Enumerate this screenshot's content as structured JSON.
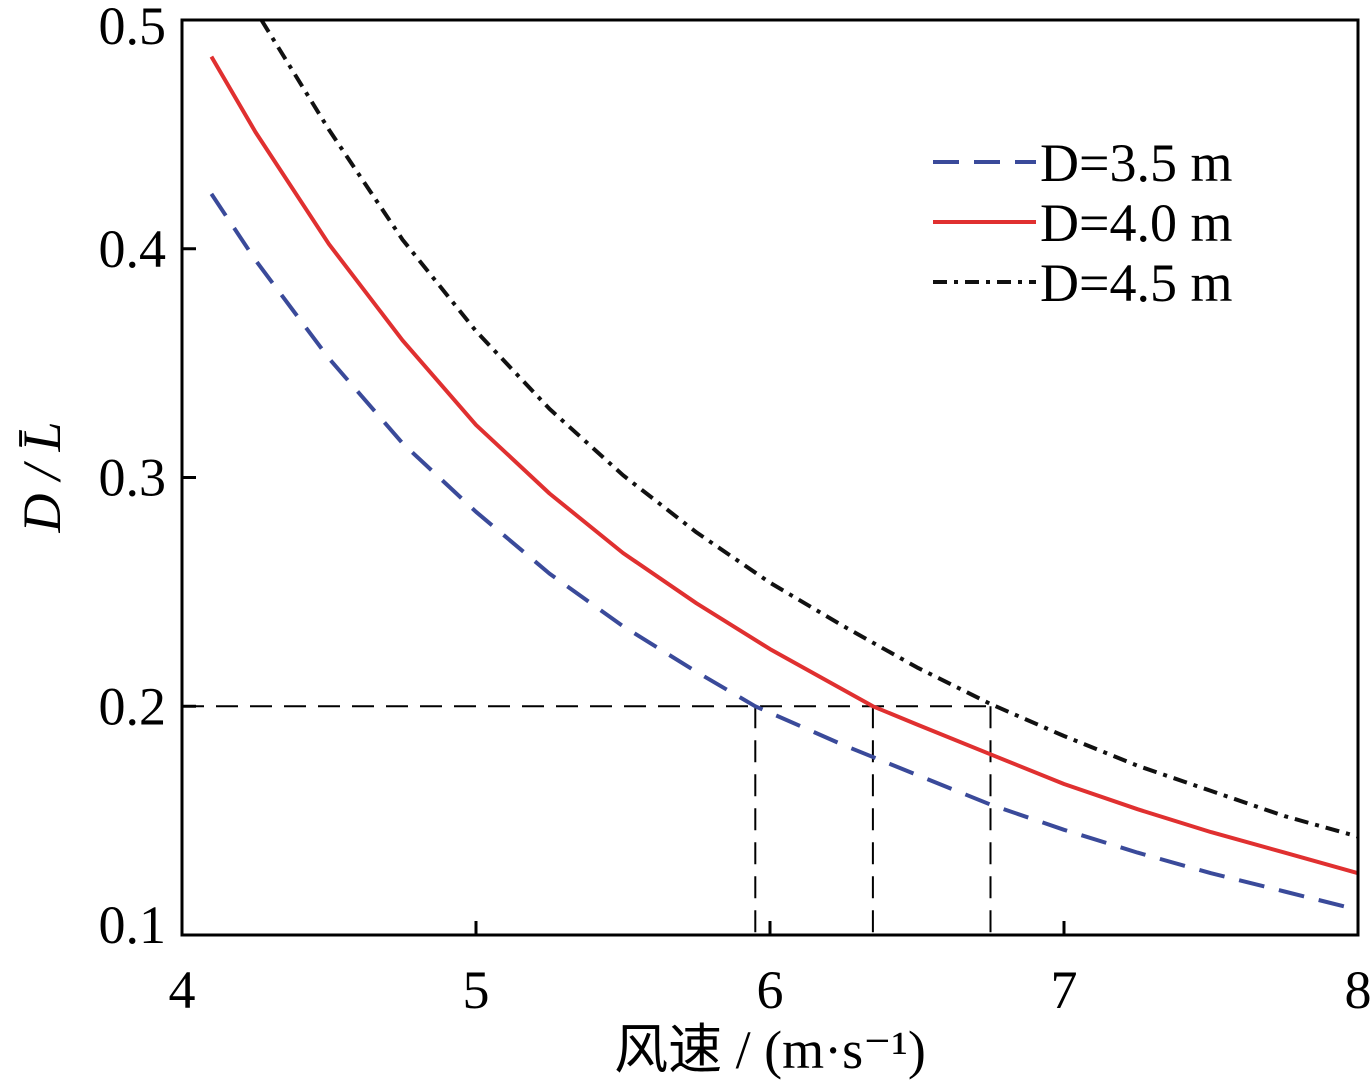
{
  "chart_data": {
    "type": "line",
    "xlabel": "风速 / (m·s⁻¹)",
    "ylabel": "D / L̄",
    "xlim": [
      4,
      8
    ],
    "ylim": [
      0.1,
      0.5
    ],
    "xticks": [
      "4",
      "5",
      "6",
      "7",
      "8"
    ],
    "yticks": [
      "0.1",
      "0.2",
      "0.3",
      "0.4",
      "0.5"
    ],
    "grid": false,
    "legend_position": "top-right",
    "series": [
      {
        "name": "D=3.5 m",
        "color": "#3a4a9a",
        "style": "dashed",
        "x": [
          4.1,
          4.25,
          4.5,
          4.75,
          5.0,
          5.25,
          5.5,
          5.75,
          5.95,
          6.25,
          6.5,
          6.75,
          7.0,
          7.25,
          7.5,
          7.75,
          8.0
        ],
        "y": [
          0.424,
          0.395,
          0.352,
          0.315,
          0.285,
          0.258,
          0.235,
          0.215,
          0.2,
          0.183,
          0.17,
          0.157,
          0.146,
          0.136,
          0.127,
          0.119,
          0.111
        ]
      },
      {
        "name": "D=4.0 m",
        "color": "#e03030",
        "style": "solid",
        "x": [
          4.1,
          4.25,
          4.5,
          4.75,
          5.0,
          5.25,
          5.5,
          5.75,
          6.0,
          6.35,
          6.5,
          6.75,
          7.0,
          7.25,
          7.5,
          7.75,
          8.0
        ],
        "y": [
          0.484,
          0.451,
          0.402,
          0.36,
          0.323,
          0.293,
          0.267,
          0.245,
          0.225,
          0.2,
          0.192,
          0.179,
          0.166,
          0.155,
          0.145,
          0.136,
          0.127
        ]
      },
      {
        "name": "D=4.5 m",
        "color": "#111111",
        "style": "dashdot",
        "x": [
          4.27,
          4.5,
          4.75,
          5.0,
          5.25,
          5.5,
          5.75,
          6.0,
          6.25,
          6.5,
          6.75,
          7.0,
          7.25,
          7.5,
          7.75,
          8.0
        ],
        "y": [
          0.5,
          0.452,
          0.404,
          0.364,
          0.33,
          0.301,
          0.276,
          0.254,
          0.235,
          0.217,
          0.201,
          0.187,
          0.174,
          0.163,
          0.152,
          0.143
        ]
      }
    ],
    "reference_lines": {
      "y_value": 0.2,
      "x_values": [
        5.95,
        6.35,
        6.75
      ],
      "color": "#000000",
      "style": "dashed"
    }
  }
}
